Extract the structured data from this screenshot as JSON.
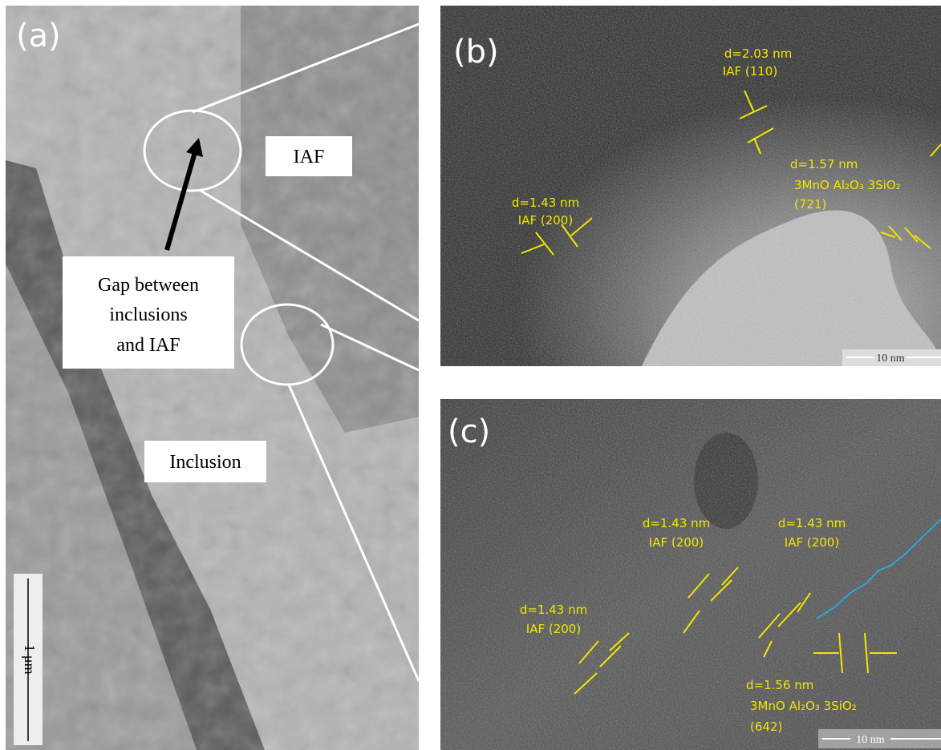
{
  "panels": [
    {
      "label": "(a)",
      "annotations": [
        {
          "lines": [
            "IAF"
          ]
        },
        {
          "lines": [
            "Gap between",
            "inclusions",
            "and IAF"
          ]
        },
        {
          "lines": [
            "Inclusion"
          ]
        }
      ],
      "scale_bar": "1 μm"
    },
    {
      "label": "(b)",
      "annotations": [
        {
          "lines": [
            "d=2.03 nm",
            "IAF (110)"
          ]
        },
        {
          "lines": [
            "d=1.43 nm",
            "IAF (200)"
          ]
        },
        {
          "lines": [
            "d=1.57 nm",
            "3MnO Al₂O₃ 3SiO₂",
            "(721)"
          ]
        }
      ],
      "scale_bar": "10 nm"
    },
    {
      "label": "(c)",
      "annotations": [
        {
          "lines": [
            "d=1.43 nm",
            "IAF (200)"
          ]
        },
        {
          "lines": [
            "d=1.43 nm",
            "IAF (200)"
          ]
        },
        {
          "lines": [
            "d=1.43 nm",
            "IAF (200)"
          ]
        },
        {
          "lines": [
            "d=1.56 nm",
            "3MnO Al₂O₃ 3SiO₂",
            "(642)"
          ]
        }
      ],
      "scale_bar": "10 nm"
    }
  ]
}
